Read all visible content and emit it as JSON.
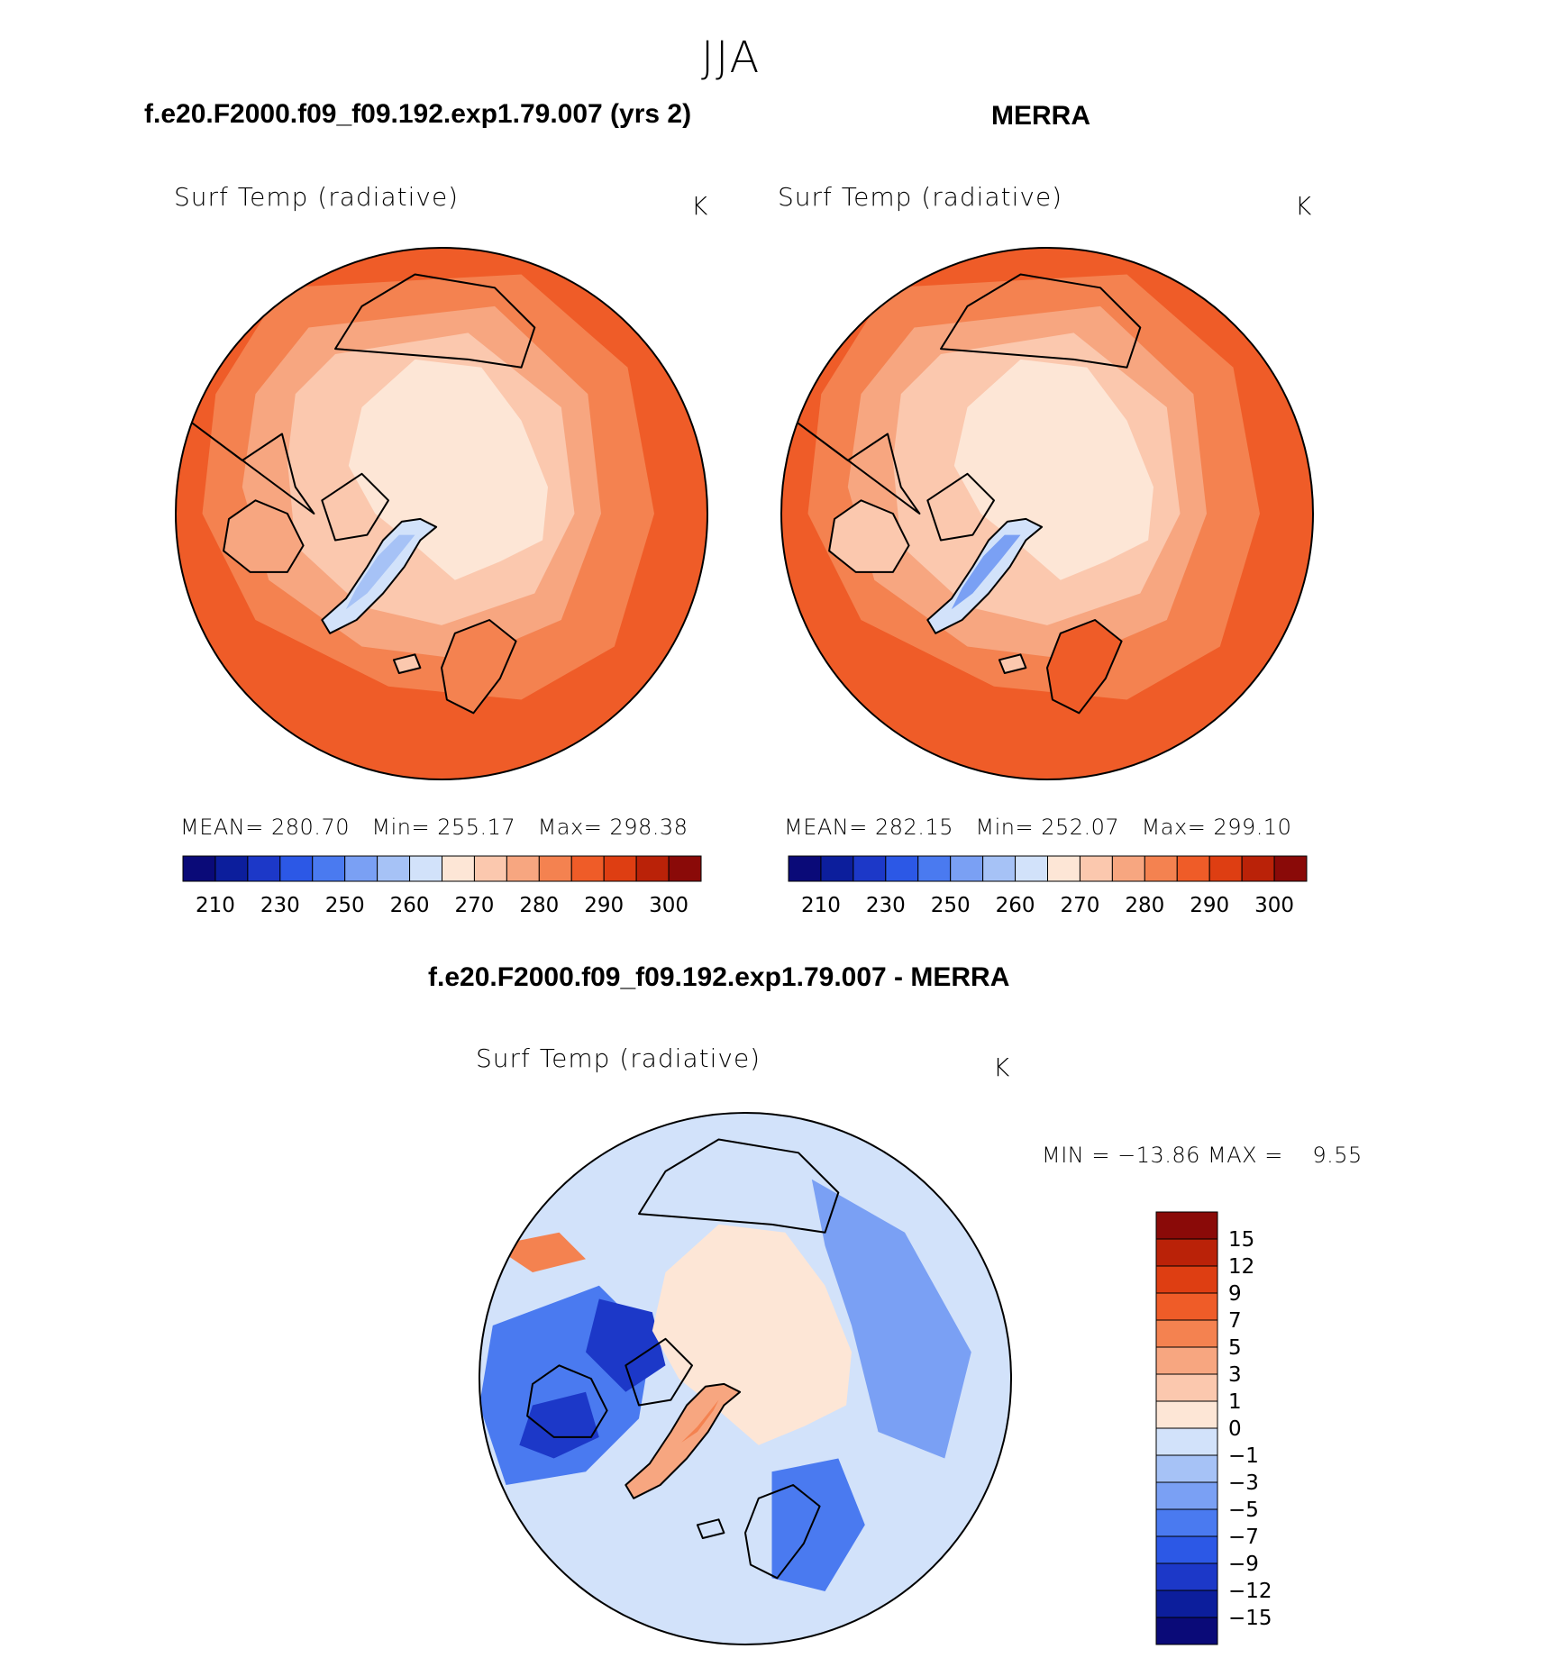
{
  "figure_title": "JJA",
  "panels": [
    {
      "title": "f.e20.F2000.f09_f09.192.exp1.79.007 (yrs 2)",
      "variable": "Surf Temp (radiative)",
      "units": "K",
      "stats": {
        "mean_label": "MEAN=",
        "mean": "280.70",
        "min_label": "Min=",
        "min": "255.17",
        "max_label": "Max=",
        "max": "298.38"
      }
    },
    {
      "title": "MERRA",
      "variable": "Surf Temp (radiative)",
      "units": "K",
      "stats": {
        "mean_label": "MEAN=",
        "mean": "282.15",
        "min_label": "Min=",
        "min": "252.07",
        "max_label": "Max=",
        "max": "299.10"
      }
    },
    {
      "title": "f.e20.F2000.f09_f09.192.exp1.79.007 - MERRA",
      "variable": "Surf Temp (radiative)",
      "units": "K",
      "stats_line": "MIN = −13.86 MAX =    9.55"
    }
  ],
  "colors": {
    "abs_scale": [
      "#0a0a78",
      "#0c1e9c",
      "#1c38c8",
      "#2c58e6",
      "#4a7af0",
      "#7aa0f4",
      "#a6c2f6",
      "#d2e2fa",
      "#fde6d6",
      "#fbc8ae",
      "#f7a680",
      "#f48250",
      "#ef5c28",
      "#de3e12",
      "#ba2208",
      "#8a0a08"
    ],
    "diff_scale": [
      "#0a0a78",
      "#0c1e9c",
      "#1c38c8",
      "#2c58e6",
      "#4a7af0",
      "#7aa0f4",
      "#a6c2f6",
      "#d2e2fa",
      "#fde6d6",
      "#fbc8ae",
      "#f7a680",
      "#f48250",
      "#ef5c28",
      "#de3e12",
      "#ba2208",
      "#8a0a08"
    ],
    "land_outline": "#000000"
  },
  "chart_data": [
    {
      "type": "map",
      "title": "f.e20.F2000.f09_f09.192.exp1.79.007 (yrs 2)",
      "projection": "north-polar-stereographic",
      "colorbar_ticks": [
        "210",
        "230",
        "250",
        "260",
        "270",
        "280",
        "290",
        "300"
      ],
      "stats": {
        "mean": 280.7,
        "min": 255.17,
        "max": 298.38
      }
    },
    {
      "type": "map",
      "title": "MERRA",
      "projection": "north-polar-stereographic",
      "colorbar_ticks": [
        "210",
        "230",
        "250",
        "260",
        "270",
        "280",
        "290",
        "300"
      ],
      "stats": {
        "mean": 282.15,
        "min": 252.07,
        "max": 299.1
      }
    },
    {
      "type": "map",
      "title": "f.e20.F2000.f09_f09.192.exp1.79.007 - MERRA",
      "projection": "north-polar-stereographic",
      "colorbar_ticks": [
        "15",
        "12",
        "9",
        "7",
        "5",
        "3",
        "1",
        "0",
        "−1",
        "−3",
        "−5",
        "−7",
        "−9",
        "−12",
        "−15"
      ],
      "stats": {
        "min": -13.86,
        "max": 9.55
      }
    }
  ]
}
